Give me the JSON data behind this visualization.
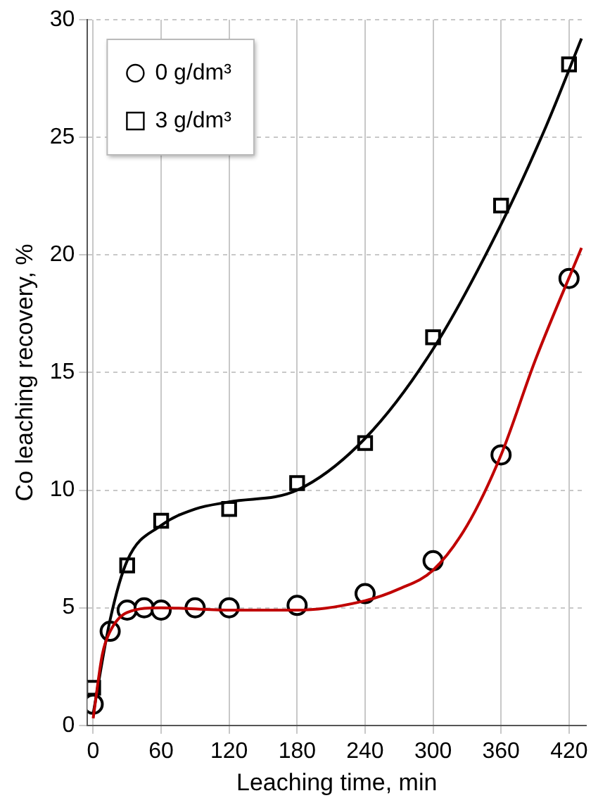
{
  "chart_data": {
    "type": "scatter",
    "xlabel": "Leaching time, min",
    "ylabel": "Co leaching recovery, %",
    "xlim": [
      -5,
      435
    ],
    "xticks": [
      0,
      60,
      120,
      180,
      240,
      300,
      360,
      420
    ],
    "ylim": [
      0,
      30
    ],
    "yticks": [
      0,
      5,
      10,
      15,
      20,
      25,
      30
    ],
    "grid": true,
    "legend": "top left",
    "series": [
      {
        "type": "line",
        "color": "#c00000",
        "marker": "none",
        "x": [
          0,
          8,
          15,
          30,
          60,
          120,
          180,
          240,
          270,
          300,
          330,
          360,
          390,
          431
        ],
        "values": [
          0.3,
          3,
          4,
          4.8,
          5,
          4.9,
          4.9,
          5.3,
          5.8,
          6.6,
          8.5,
          11.5,
          15.5,
          20.3
        ]
      },
      {
        "type": "line",
        "color": "#000000",
        "marker": "none",
        "x": [
          0,
          15,
          30,
          60,
          90,
          120,
          180,
          240,
          300,
          360,
          400,
          431
        ],
        "values": [
          0.5,
          4.5,
          7,
          8.5,
          9.2,
          9.5,
          10,
          12.2,
          16,
          21.3,
          25.5,
          29.2
        ]
      },
      {
        "name": "0 g/dm³",
        "color": "#000000",
        "marker": "circle",
        "x": [
          0,
          15,
          30,
          45,
          60,
          90,
          120,
          180,
          240,
          300,
          360,
          420
        ],
        "values": [
          0.9,
          4,
          4.9,
          5,
          4.9,
          5,
          5,
          5.1,
          5.6,
          7,
          11.5,
          19
        ]
      },
      {
        "name": "3 g/dm³",
        "color": "#000000",
        "marker": "square",
        "x": [
          0,
          30,
          60,
          120,
          180,
          240,
          300,
          360,
          420
        ],
        "values": [
          1.6,
          6.8,
          8.7,
          9.2,
          10.3,
          12,
          16.5,
          22.1,
          28.1
        ]
      }
    ]
  }
}
